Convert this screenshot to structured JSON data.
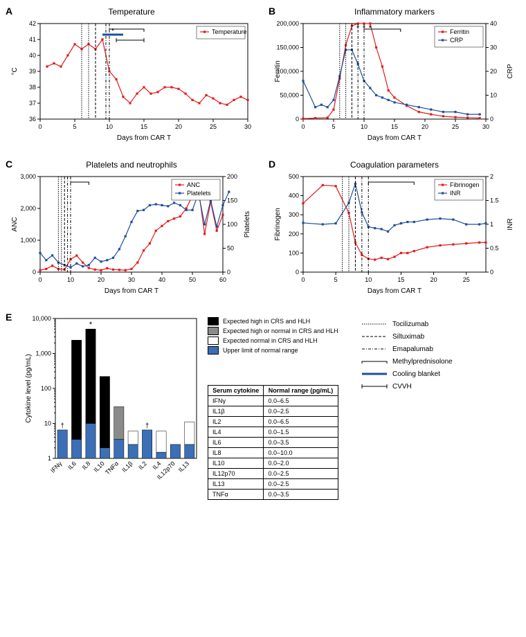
{
  "colors": {
    "red": "#e41a1c",
    "blue": "#1f4e9c",
    "black": "#000000",
    "grey": "#8a8a8a",
    "white": "#ffffff",
    "barBlue": "#3b6fb6"
  },
  "interventions_legend": [
    {
      "style": "dash-toc",
      "label": "Tocilizumab"
    },
    {
      "style": "dash-sil",
      "label": "Siltuximab"
    },
    {
      "style": "dash-ema",
      "label": "Emapalumab"
    },
    {
      "style": "bracket",
      "label": "Methylprednisolone"
    },
    {
      "style": "blue-bar",
      "label": "Cooling blanket"
    },
    {
      "style": "open-bracket",
      "label": "CVVH"
    }
  ],
  "panelA": {
    "label": "A",
    "title": "Temperature",
    "xlabel": "Days from CAR T",
    "ylabel": "°C",
    "xlim": [
      0,
      30
    ],
    "xtick_step": 5,
    "ylim": [
      36,
      42
    ],
    "ytick_step": 1,
    "legend": [
      {
        "name": "Temperature",
        "color": "red"
      }
    ],
    "series_red": {
      "x": [
        1,
        2,
        3,
        4,
        5,
        6,
        7,
        8,
        9,
        10,
        11,
        12,
        13,
        14,
        15,
        16,
        17,
        18,
        19,
        20,
        21,
        22,
        23,
        24,
        25,
        26,
        27,
        28,
        29,
        30
      ],
      "y": [
        39.3,
        39.5,
        39.3,
        40.0,
        40.7,
        40.4,
        40.7,
        40.4,
        41.0,
        39.0,
        38.5,
        37.4,
        37.0,
        37.6,
        38.0,
        37.6,
        37.7,
        38.0,
        38.0,
        37.9,
        37.6,
        37.2,
        37.0,
        37.5,
        37.3,
        37.0,
        36.9,
        37.2,
        37.4,
        37.2
      ]
    },
    "interventions": {
      "toc": [
        6,
        7
      ],
      "sil": [
        8
      ],
      "ema": [
        9.5,
        10
      ],
      "methyl": [
        10,
        15
      ],
      "cool": [
        9,
        12
      ],
      "cool_asterisk": "*",
      "cvvh": [
        11,
        15
      ]
    }
  },
  "panelB": {
    "label": "B",
    "title": "Inflammatory markers",
    "xlabel": "Days from CAR T",
    "y1label": "Ferritin",
    "y2label": "CRP",
    "xlim": [
      0,
      30
    ],
    "xtick_step": 5,
    "y1lim": [
      0,
      200000
    ],
    "y1tick_step": 50000,
    "y2lim": [
      0,
      40
    ],
    "y2tick_step": 10,
    "legend": [
      {
        "name": "Ferritin",
        "color": "red"
      },
      {
        "name": "CRP",
        "color": "blue"
      }
    ],
    "series_red": {
      "x": [
        0,
        2,
        4,
        5,
        6,
        7,
        8,
        9,
        10,
        11,
        12,
        13,
        14,
        15,
        17,
        19,
        21,
        23,
        25,
        27,
        29
      ],
      "y": [
        1000,
        2000,
        3000,
        20000,
        85000,
        155000,
        195000,
        200000,
        200000,
        200000,
        150000,
        110000,
        60000,
        45000,
        28000,
        15000,
        10000,
        6000,
        4000,
        3000,
        2000
      ]
    },
    "asterisks_x": [
      9,
      10,
      11
    ],
    "series_blue": {
      "x": [
        0,
        2,
        3,
        4,
        5,
        6,
        7,
        8,
        9,
        10,
        11,
        12,
        13,
        14,
        15,
        17,
        19,
        21,
        23,
        25,
        27,
        29
      ],
      "y": [
        16,
        5,
        6,
        5,
        8,
        18,
        29,
        29,
        23,
        16,
        13,
        10,
        9,
        8,
        7,
        6,
        5,
        4,
        3,
        3,
        2,
        2
      ]
    },
    "interventions": {
      "toc": [
        6,
        7
      ],
      "sil": [
        8
      ],
      "ema": [
        9,
        10
      ],
      "methyl": [
        10,
        16
      ]
    }
  },
  "panelC": {
    "label": "C",
    "title": "Platelets and neutrophils",
    "xlabel": "Days from CAR T",
    "y1label": "ANC",
    "y2label": "Platelets",
    "xlim": [
      0,
      60
    ],
    "xtick_step": 10,
    "y1lim": [
      0,
      3000
    ],
    "y1tick_step": 1000,
    "y2lim": [
      0,
      200
    ],
    "y2tick_step": 50,
    "legend": [
      {
        "name": "ANC",
        "color": "red"
      },
      {
        "name": "Platelets",
        "color": "blue"
      }
    ],
    "series_red": {
      "x": [
        0,
        2,
        4,
        6,
        8,
        10,
        12,
        14,
        16,
        18,
        20,
        22,
        24,
        26,
        28,
        30,
        32,
        34,
        36,
        38,
        40,
        42,
        44,
        46,
        48,
        50,
        52,
        54,
        56,
        58,
        60
      ],
      "y": [
        60,
        100,
        200,
        100,
        80,
        400,
        520,
        300,
        130,
        80,
        60,
        120,
        80,
        70,
        60,
        100,
        300,
        680,
        900,
        1300,
        1450,
        1600,
        1680,
        1750,
        2000,
        2400,
        2600,
        1200,
        2200,
        1300,
        1800
      ]
    },
    "series_blue": {
      "x": [
        0,
        2,
        4,
        6,
        8,
        10,
        12,
        14,
        16,
        18,
        20,
        22,
        24,
        26,
        28,
        30,
        32,
        34,
        36,
        38,
        40,
        42,
        44,
        46,
        48,
        50,
        52,
        54,
        56,
        58,
        60,
        62
      ],
      "y": [
        40,
        25,
        35,
        20,
        15,
        10,
        18,
        12,
        15,
        30,
        22,
        25,
        30,
        48,
        75,
        105,
        128,
        130,
        140,
        142,
        140,
        138,
        145,
        140,
        130,
        130,
        165,
        100,
        150,
        95,
        140,
        168
      ]
    },
    "interventions": {
      "toc": [
        6,
        7
      ],
      "sil": [
        8
      ],
      "ema": [
        9,
        10
      ],
      "methyl": [
        10,
        16
      ]
    }
  },
  "panelD": {
    "label": "D",
    "title": "Coagulation parameters",
    "xlabel": "Days from CAR T",
    "y1label": "Fibrinogen",
    "y2label": "INR",
    "xlim": [
      0,
      28
    ],
    "xtick_step": 5,
    "y1lim": [
      0,
      500
    ],
    "y1tick_step": 100,
    "y2lim": [
      0,
      2.0
    ],
    "y2tick_step": 0.5,
    "legend": [
      {
        "name": "Fibrinogen",
        "color": "red"
      },
      {
        "name": "INR",
        "color": "blue"
      }
    ],
    "series_red": {
      "x": [
        0,
        3,
        5,
        7,
        8,
        9,
        10,
        11,
        12,
        13,
        14,
        15,
        16,
        17,
        19,
        21,
        23,
        25,
        27,
        28
      ],
      "y": [
        360,
        455,
        450,
        310,
        155,
        90,
        70,
        65,
        75,
        68,
        80,
        100,
        100,
        110,
        130,
        140,
        145,
        150,
        155,
        155
      ]
    },
    "series_blue": {
      "x": [
        0,
        3,
        5,
        7,
        8,
        9,
        10,
        11,
        12,
        13,
        14,
        15,
        16,
        17,
        19,
        21,
        23,
        25,
        27,
        28
      ],
      "y": [
        1.03,
        1.0,
        1.02,
        1.45,
        1.85,
        1.25,
        0.95,
        0.92,
        0.9,
        0.85,
        0.98,
        1.02,
        1.05,
        1.05,
        1.1,
        1.12,
        1.1,
        1.0,
        1.0,
        1.02
      ]
    },
    "interventions": {
      "toc": [
        6,
        7
      ],
      "sil": [
        8
      ],
      "ema": [
        9,
        10
      ],
      "methyl": [
        10,
        17
      ]
    }
  },
  "panelE": {
    "label": "E",
    "ylabel": "Cytokine level (pg/mL)",
    "ylog": [
      1,
      10,
      100,
      1000,
      10000
    ],
    "categories": [
      "IFNγ",
      "IL6",
      "IL8",
      "IL10",
      "TNFα",
      "IL1β",
      "IL2",
      "IL4",
      "IL12p70",
      "IL13"
    ],
    "uln": [
      6.5,
      3.5,
      10.0,
      2.0,
      3.5,
      2.5,
      6.5,
      1.5,
      2.5,
      2.5
    ],
    "measured": [
      6.5,
      2400,
      5000,
      220,
      30,
      6.0,
      6.5,
      6.0,
      1.3,
      11
    ],
    "fill": [
      "black",
      "black",
      "black",
      "black",
      "grey",
      "white",
      "black",
      "white",
      "white",
      "white"
    ],
    "annot": {
      "daggers": [
        0,
        6
      ],
      "asterisk": [
        2
      ]
    },
    "legend": [
      {
        "swatch": "black",
        "label": "Expected high in CRS and HLH"
      },
      {
        "swatch": "grey",
        "label": "Expected high or normal in CRS and HLH"
      },
      {
        "swatch": "white",
        "label": "Expected normal in CRS and HLH"
      },
      {
        "swatch": "blue",
        "label": "Upper limit of normal range"
      }
    ],
    "table": {
      "headers": [
        "Serum cytokine",
        "Normal range (pg/mL)"
      ],
      "rows": [
        [
          "IFNγ",
          "0.0–6.5"
        ],
        [
          "IL1β",
          "0.0–2.5"
        ],
        [
          "IL2",
          "0.0–6.5"
        ],
        [
          "IL4",
          "0.0–1.5"
        ],
        [
          "IL6",
          "0.0–3.5"
        ],
        [
          "IL8",
          "0.0–10.0"
        ],
        [
          "IL10",
          "0.0–2.0"
        ],
        [
          "IL12p70",
          "0.0–2.5"
        ],
        [
          "IL13",
          "0.0–2.5"
        ],
        [
          "TNFα",
          "0.0–3.5"
        ]
      ]
    }
  }
}
